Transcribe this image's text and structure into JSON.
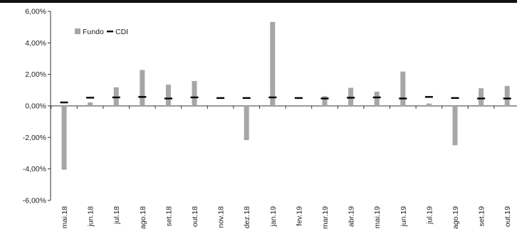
{
  "chart_data": {
    "type": "bar",
    "categories": [
      "mai.18",
      "jun.18",
      "jul.18",
      "ago.18",
      "set.18",
      "out.18",
      "nov.18",
      "dez.18",
      "jan.19",
      "fev.19",
      "mar.19",
      "abr.19",
      "mai.19",
      "jun.19",
      "jul.19",
      "ago.19",
      "set.19",
      "out.19"
    ],
    "series": [
      {
        "name": "Fundo",
        "kind": "bar",
        "color": "#a6a6a6",
        "values": [
          -4.05,
          0.22,
          1.18,
          2.28,
          1.35,
          1.58,
          0.0,
          -2.17,
          5.33,
          0.0,
          0.62,
          1.15,
          0.9,
          2.18,
          0.15,
          -2.5,
          1.12,
          1.27
        ]
      },
      {
        "name": "CDI",
        "kind": "dash",
        "color": "#000000",
        "values": [
          0.22,
          0.52,
          0.54,
          0.57,
          0.47,
          0.54,
          0.5,
          0.5,
          0.54,
          0.5,
          0.47,
          0.52,
          0.54,
          0.47,
          0.57,
          0.5,
          0.47,
          0.47
        ]
      }
    ],
    "y_ticks": [
      "6,00%",
      "4,00%",
      "2,00%",
      "0,00%",
      "-2,00%",
      "-4,00%",
      "-6,00%"
    ],
    "ylim": [
      -6,
      6
    ],
    "legend_position": "top-left"
  }
}
